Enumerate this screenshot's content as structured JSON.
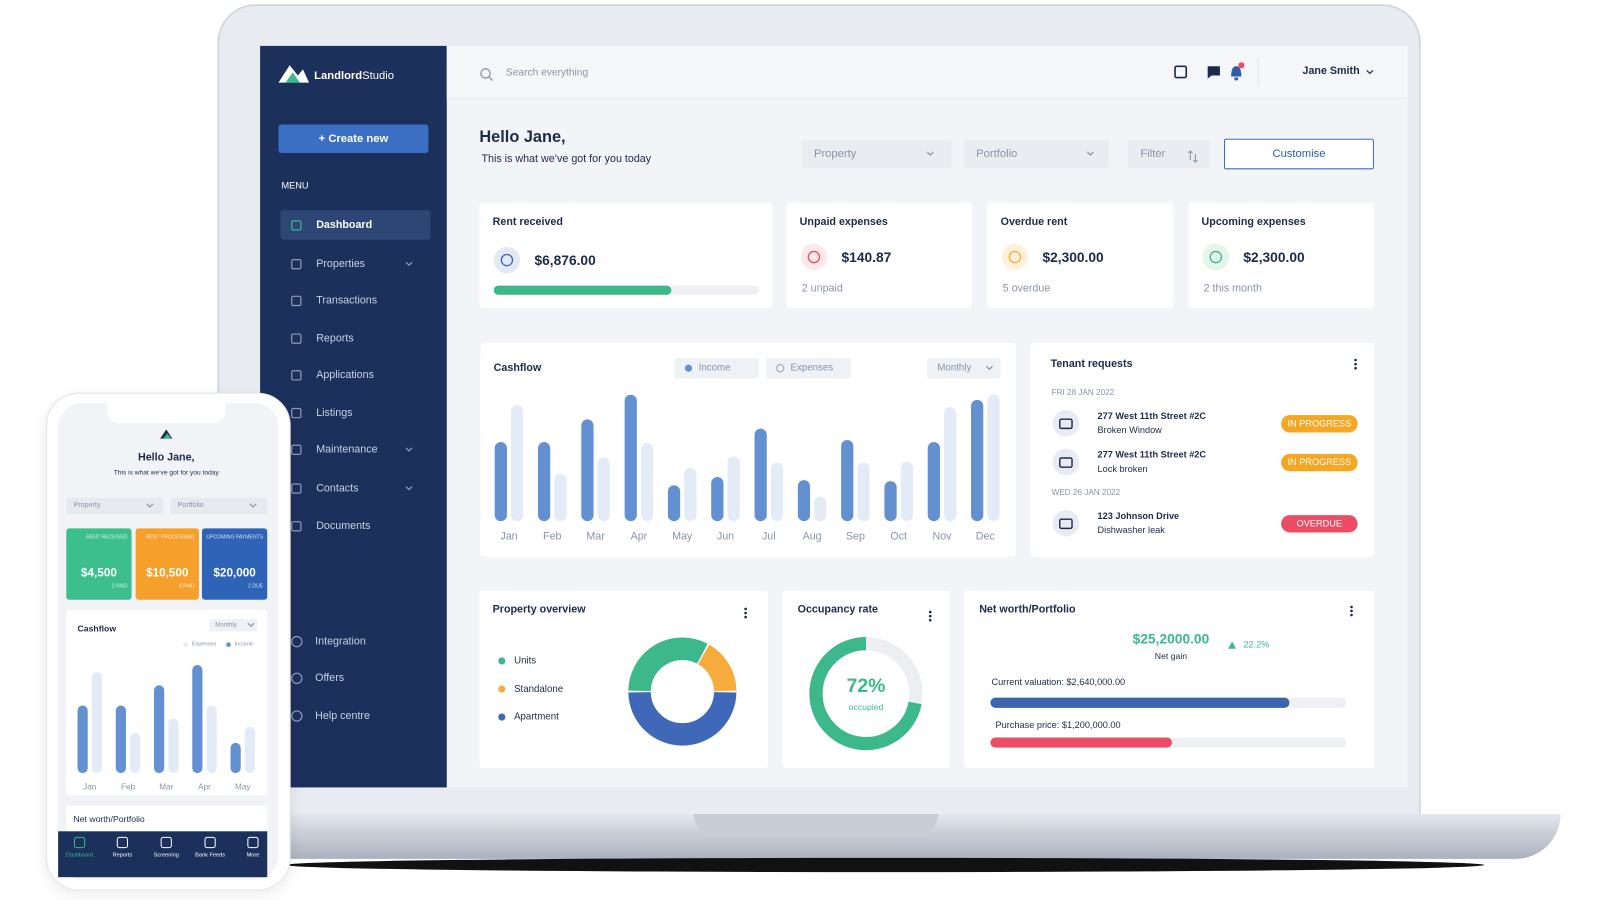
{
  "brand": {
    "bold": "Landlord",
    "light": "Studio"
  },
  "sidebar": {
    "create": "+ Create new",
    "menu": "MENU",
    "items": [
      {
        "label": "Dashboard",
        "submenu": false
      },
      {
        "label": "Properties",
        "submenu": true
      },
      {
        "label": "Transactions",
        "submenu": false
      },
      {
        "label": "Reports",
        "submenu": false
      },
      {
        "label": "Applications",
        "submenu": false
      },
      {
        "label": "Listings",
        "submenu": false
      },
      {
        "label": "Maintenance",
        "submenu": true
      },
      {
        "label": "Contacts",
        "submenu": true
      },
      {
        "label": "Documents",
        "submenu": false
      }
    ],
    "bottom_items": [
      "Integration",
      "Offers",
      "Help centre"
    ]
  },
  "topbar": {
    "search": "Search everything",
    "user": "Jane Smith"
  },
  "greeting": {
    "title": "Hello Jane,",
    "subtitle": "This is what we’ve got for you today"
  },
  "filters": {
    "property": "Property",
    "portfolio": "Portfolio",
    "filter": "Filter",
    "customise": "Customise"
  },
  "stats": [
    {
      "title": "Rent received",
      "value": "$6,876.00",
      "progress": 67
    },
    {
      "title": "Unpaid expenses",
      "value": "$140.87",
      "note": "2 unpaid"
    },
    {
      "title": "Overdue rent",
      "value": "$2,300.00",
      "note": "5 overdue"
    },
    {
      "title": "Upcoming expenses",
      "value": "$2,300.00",
      "note": "2 this month"
    }
  ],
  "chart_data": [
    {
      "type": "bar",
      "title": "Cashflow",
      "period": "Monthly",
      "categories": [
        "Jan",
        "Feb",
        "Mar",
        "Apr",
        "May",
        "Jun",
        "Jul",
        "Aug",
        "Sep",
        "Oct",
        "Nov",
        "Dec"
      ],
      "series": [
        {
          "name": "Income",
          "color": "#6390d0",
          "values": [
            77,
            77,
            99,
            123,
            35,
            43,
            90,
            40,
            79,
            39,
            77,
            118
          ]
        },
        {
          "name": "Expenses",
          "color": "#e3ebf7",
          "values": [
            113,
            46,
            62,
            76,
            52,
            63,
            57,
            24,
            57,
            58,
            111,
            123
          ]
        }
      ]
    },
    {
      "type": "pie",
      "title": "Property overview",
      "categories": [
        "Units",
        "Standalone",
        "Apartment"
      ],
      "values": [
        33,
        17,
        50
      ],
      "colors": [
        "#3cb88a",
        "#f5ac3c",
        "#4068b8"
      ]
    },
    {
      "type": "donut",
      "title": "Occupancy rate",
      "values": [
        72
      ],
      "value_labels": [
        "72%"
      ],
      "annotation": "occupied",
      "color": "#3cb88a"
    },
    {
      "type": "bar",
      "title": "Cashflow",
      "period": "Monthly",
      "categories": [
        "Jan",
        "Feb",
        "Mar",
        "Apr",
        "May"
      ],
      "series": [
        {
          "name": "Expenses",
          "color": "#e3ebf7",
          "values": [
            100,
            40,
            54,
            67,
            46
          ]
        },
        {
          "name": "Income",
          "color": "#6390d0",
          "values": [
            67,
            67,
            87,
            107,
            30
          ]
        }
      ]
    }
  ],
  "tenant_requests": {
    "title": "Tenant requests",
    "groups": [
      {
        "date": "FRI 28 JAN 2022",
        "items": [
          {
            "address": "277 West 11th Street #2C",
            "issue": "Broken Window",
            "status": "IN PROGRESS",
            "color": "#f5a623"
          },
          {
            "address": "277 West 11th Street #2C",
            "issue": "Lock broken",
            "status": "IN PROGRESS",
            "color": "#f5a623"
          }
        ]
      },
      {
        "date": "WED 26 JAN 2022",
        "items": [
          {
            "address": "123 Johnson Drive",
            "issue": "Dishwasher leak",
            "status": "OVERDUE",
            "color": "#ec4d64"
          }
        ]
      }
    ]
  },
  "net_worth": {
    "title": "Net worth/Portfolio",
    "value": "$25,2000.00",
    "caption": "Net gain",
    "change": "22.2%",
    "bars": [
      {
        "label": "Current valuation: $2,640,000.00",
        "percent": 84,
        "color": "#3d64ad"
      },
      {
        "label": "Purchase price: $1,200,000.00",
        "percent": 51,
        "color": "#ec4d64"
      }
    ]
  },
  "mobile": {
    "greeting": "Hello Jane,",
    "subtitle": "This is what we’ve got for you today",
    "filters": [
      "Property",
      "Portfolio"
    ],
    "cards": [
      {
        "label": "RENT RECEIVED",
        "value": "$4,500",
        "note": "2 PAID",
        "color": "#3cbf8c"
      },
      {
        "label": "RENT PROCESSING",
        "value": "$10,500",
        "note": "4 PAID",
        "color": "#f5a02a"
      },
      {
        "label": "UPCOMING PAYMENTS",
        "value": "$20,000",
        "note": "2 DUE",
        "color": "#2e63b8"
      }
    ],
    "net_worth": "Net worth/Portfolio",
    "nav": [
      "Dashboard",
      "Reports",
      "Screening",
      "Bank Feeds",
      "More"
    ]
  }
}
